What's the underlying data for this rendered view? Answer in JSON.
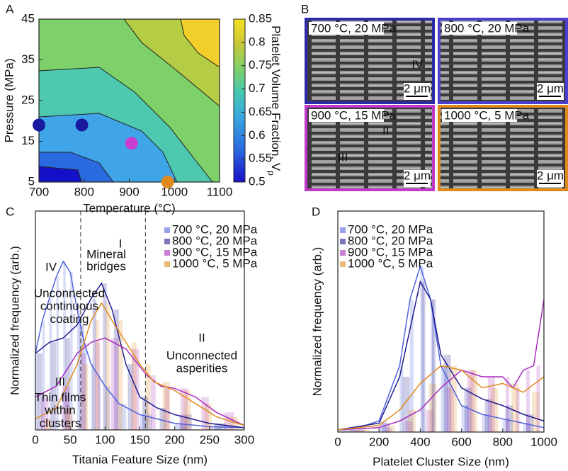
{
  "chart_data": [
    {
      "type": "contour",
      "panel": "A",
      "x_label": "Temperature (°C)",
      "y_label": "Pressure (MPa)",
      "xlim": [
        700,
        1100
      ],
      "xticks": [
        700,
        800,
        900,
        1000,
        1100
      ],
      "ylim": [
        5,
        45
      ],
      "yticks": [
        5,
        15,
        25,
        35,
        45
      ],
      "colorbar_label": "Platelet Volume Fraction, V",
      "colorbar_label_sub": "p",
      "zlim": [
        0.5,
        0.85
      ],
      "zticks": [
        0.5,
        0.55,
        0.6,
        0.65,
        0.7,
        0.75,
        0.8,
        0.85
      ],
      "points": {
        "x": [
          700,
          795,
          905,
          985
        ],
        "y": [
          19,
          19,
          14.5,
          5
        ],
        "colors": [
          "#1a1aa0",
          "#1a1aa0",
          "#c83cd2",
          "#e08a1e"
        ]
      }
    },
    {
      "type": "line",
      "panel": "C",
      "x_label": "Titania Feature Size (nm)",
      "y_label": "Normalized frequency (arb.)",
      "xlim": [
        0,
        300
      ],
      "xticks": [
        0,
        50,
        100,
        150,
        200,
        250,
        300
      ],
      "ylim": [
        0,
        1
      ],
      "legend": "top-right",
      "vlines": [
        65,
        158
      ],
      "annotations": [
        {
          "lines": [
            "I"
          ]
        },
        {
          "lines": [
            "Mineral",
            "bridges"
          ]
        },
        {
          "lines": [
            "IV"
          ]
        },
        {
          "lines": [
            "Unconnected",
            "continuous",
            "coating"
          ]
        },
        {
          "lines": [
            "II"
          ]
        },
        {
          "lines": [
            "Unconnected",
            "asperities"
          ]
        },
        {
          "lines": [
            "III"
          ]
        },
        {
          "lines": [
            "Thin films",
            "within",
            "clusters"
          ]
        }
      ],
      "series": [
        {
          "name": "700 °C, 20 MPa",
          "color": "#4f63dc",
          "x": [
            0,
            10,
            20,
            30,
            40,
            50,
            60,
            70,
            80,
            90,
            100,
            120,
            150,
            200,
            250,
            300
          ],
          "values": [
            0.35,
            0.5,
            0.6,
            0.7,
            0.77,
            0.72,
            0.55,
            0.4,
            0.3,
            0.25,
            0.2,
            0.12,
            0.07,
            0.03,
            0.015,
            0.01
          ]
        },
        {
          "name": "800 °C, 20 MPa",
          "color": "#1f1c8f",
          "x": [
            0,
            20,
            40,
            60,
            80,
            95,
            110,
            130,
            150,
            175,
            200,
            250,
            300
          ],
          "values": [
            0.35,
            0.4,
            0.42,
            0.48,
            0.6,
            0.67,
            0.55,
            0.3,
            0.15,
            0.1,
            0.07,
            0.03,
            0.01
          ]
        },
        {
          "name": "900 °C, 15 MPa",
          "color": "#a82cbc",
          "x": [
            0,
            30,
            60,
            80,
            100,
            130,
            160,
            180,
            200,
            230,
            260,
            300
          ],
          "values": [
            0.15,
            0.2,
            0.35,
            0.4,
            0.42,
            0.37,
            0.25,
            0.2,
            0.19,
            0.15,
            0.08,
            0.02
          ]
        },
        {
          "name": "1000 °C, 5 MPa",
          "color": "#e08a1e",
          "x": [
            0,
            30,
            60,
            80,
            95,
            110,
            130,
            150,
            170,
            200,
            230,
            260,
            300
          ],
          "values": [
            0.05,
            0.1,
            0.3,
            0.5,
            0.58,
            0.5,
            0.4,
            0.3,
            0.22,
            0.18,
            0.12,
            0.06,
            0.02
          ]
        }
      ]
    },
    {
      "type": "line",
      "panel": "D",
      "x_label": "Platelet Cluster Size (nm)",
      "y_label": "Normalized frequency (arb.)",
      "xlim": [
        0,
        1000
      ],
      "xticks": [
        0,
        200,
        400,
        600,
        800,
        1000
      ],
      "ylim": [
        0,
        1
      ],
      "legend": "top-left",
      "series": [
        {
          "name": "700 °C, 20 MPa",
          "color": "#4f63dc",
          "x": [
            0,
            100,
            200,
            300,
            350,
            400,
            450,
            500,
            600,
            700,
            800,
            900,
            1000
          ],
          "values": [
            0.01,
            0.02,
            0.05,
            0.3,
            0.6,
            0.75,
            0.6,
            0.3,
            0.12,
            0.08,
            0.06,
            0.04,
            0.02
          ]
        },
        {
          "name": "800 °C, 20 MPa",
          "color": "#1f1c8f",
          "x": [
            0,
            200,
            300,
            400,
            450,
            500,
            600,
            700,
            800,
            900,
            1000
          ],
          "values": [
            0.01,
            0.04,
            0.25,
            0.68,
            0.6,
            0.35,
            0.2,
            0.15,
            0.12,
            0.08,
            0.05
          ]
        },
        {
          "name": "900 °C, 15 MPa",
          "color": "#a82cbc",
          "x": [
            0,
            200,
            300,
            400,
            500,
            600,
            700,
            800,
            850,
            900,
            950,
            1000
          ],
          "values": [
            0.01,
            0.02,
            0.05,
            0.1,
            0.2,
            0.28,
            0.25,
            0.25,
            0.2,
            0.28,
            0.3,
            0.6
          ]
        },
        {
          "name": "1000 °C, 5 MPa",
          "color": "#e08a1e",
          "x": [
            0,
            200,
            300,
            400,
            500,
            600,
            700,
            800,
            900,
            1000
          ],
          "values": [
            0.01,
            0.03,
            0.1,
            0.22,
            0.3,
            0.28,
            0.2,
            0.22,
            0.18,
            0.25
          ]
        }
      ]
    }
  ],
  "panel_b": {
    "panel": "B",
    "images": [
      {
        "label": "700 °C, 20 MPa",
        "scale": "2 μm",
        "color": "#2b2ba8",
        "marks": [
          "IV"
        ]
      },
      {
        "label": "800 °C, 20 MPa",
        "scale": "2 μm",
        "color": "#4a3fd0",
        "marks": []
      },
      {
        "label": "900 °C, 15 MPa",
        "scale": "2 μm",
        "color": "#c03ac8",
        "marks": [
          "II",
          "III"
        ]
      },
      {
        "label": "1000 °C, 5 MPa",
        "scale": "2 μm",
        "color": "#e08a1e",
        "marks": []
      }
    ]
  }
}
